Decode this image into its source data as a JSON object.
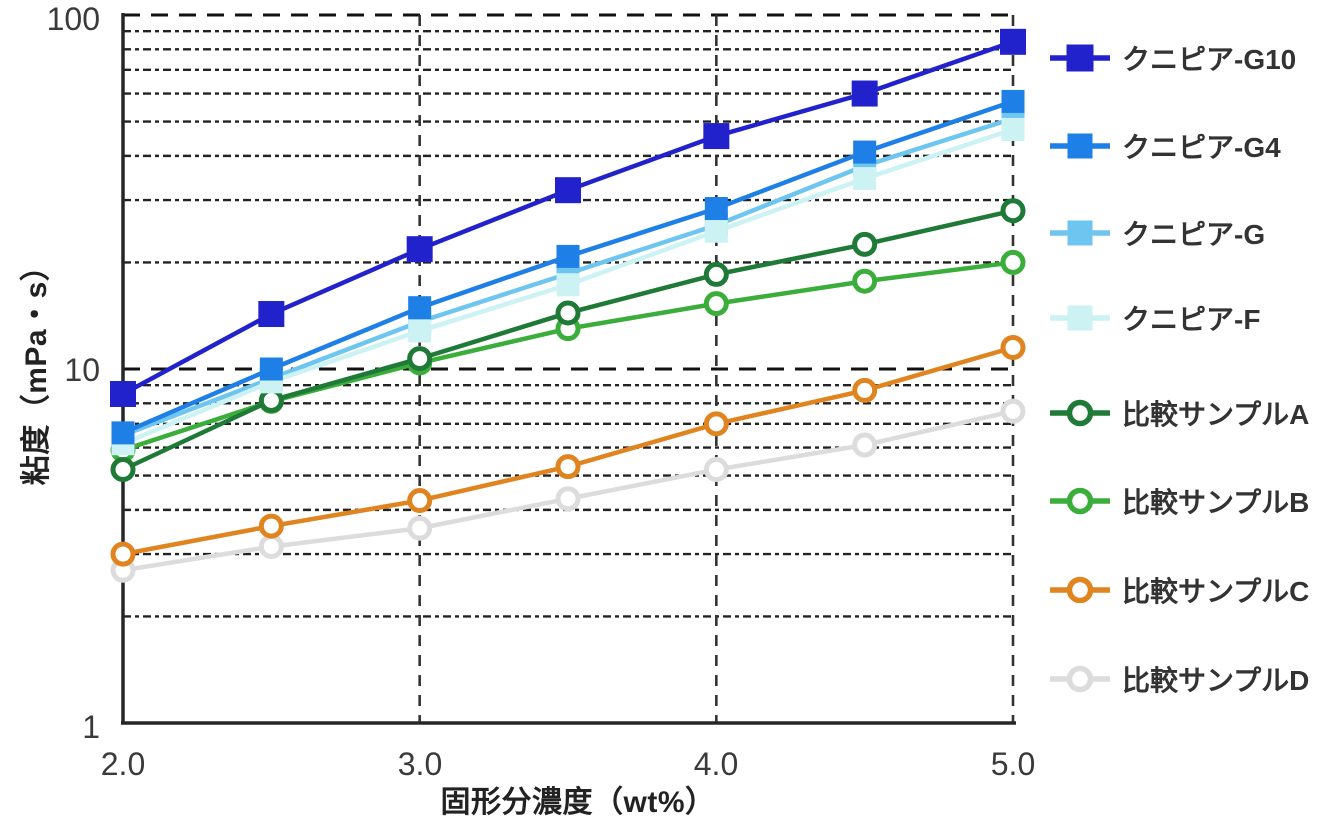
{
  "chart_data": {
    "type": "line",
    "title": "",
    "xlabel": "固形分濃度（wt%）",
    "ylabel": "粘度（mPa・s）",
    "x": [
      2.0,
      2.5,
      3.0,
      3.5,
      4.0,
      4.5,
      5.0
    ],
    "x_axis": {
      "label": "固形分濃度（wt%）",
      "min": 2.0,
      "max": 5.0,
      "tick_labels": [
        "2.0",
        "3.0",
        "4.0",
        "5.0"
      ],
      "tick_values": [
        2.0,
        3.0,
        4.0,
        5.0
      ],
      "gridlines": "dashed vertical at 3.0, 4.0, 5.0"
    },
    "y_axis": {
      "label": "粘度（mPa・s）",
      "scale": "log",
      "min": 1,
      "max": 100,
      "tick_labels": [
        "100",
        "10",
        "1"
      ],
      "tick_values": [
        100,
        10,
        1
      ],
      "gridlines": "dashed major at 10 and 100, dotted minor at 2-9 and 20-90"
    },
    "legend_position": "right",
    "series": [
      {
        "name": "クニピア-G10",
        "color": "#2222CC",
        "marker": "filled-square",
        "values": [
          8.5,
          14.3,
          21.8,
          32,
          45.5,
          60,
          84
        ]
      },
      {
        "name": "クニピア-G4",
        "color": "#1E7FE6",
        "marker": "filled-square",
        "values": [
          6.6,
          10,
          14.9,
          20.8,
          28.4,
          41,
          57
        ]
      },
      {
        "name": "クニピア-G",
        "color": "#6EC6F0",
        "marker": "filled-square",
        "values": [
          6.5,
          9.4,
          13.6,
          18.6,
          25.5,
          37.5,
          51
        ]
      },
      {
        "name": "クニピア-F",
        "color": "#CCF2F4",
        "marker": "filled-square",
        "values": [
          6.15,
          9.2,
          12.8,
          17.3,
          24.5,
          34.5,
          47.5
        ]
      },
      {
        "name": "比較サンプルA",
        "color": "#1E7A36",
        "marker": "open-circle",
        "values": [
          5.2,
          8.15,
          10.7,
          14.4,
          18.5,
          22.5,
          28
        ]
      },
      {
        "name": "比較サンプルB",
        "color": "#3AAD3A",
        "marker": "open-circle",
        "values": [
          5.9,
          8.1,
          10.4,
          13,
          15.3,
          17.7,
          20
        ]
      },
      {
        "name": "比較サンプルC",
        "color": "#E08420",
        "marker": "open-circle",
        "values": [
          3.0,
          3.6,
          4.25,
          5.3,
          7.0,
          8.7,
          11.5
        ]
      },
      {
        "name": "比較サンプルD",
        "color": "#DCDCDC",
        "marker": "open-circle",
        "values": [
          2.7,
          3.15,
          3.55,
          4.3,
          5.2,
          6.1,
          7.6
        ]
      }
    ]
  }
}
